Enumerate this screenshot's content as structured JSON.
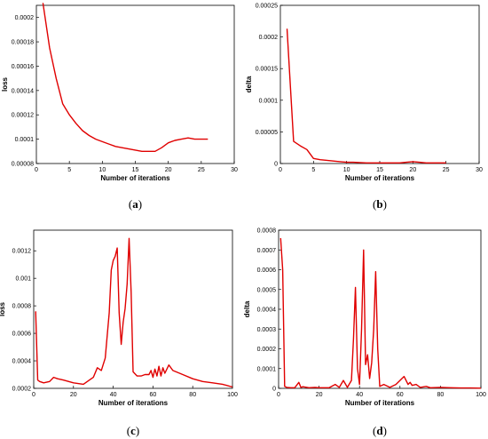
{
  "chart_data": [
    {
      "type": "line",
      "caption_letter": "a",
      "xlabel": "Number of iterations",
      "ylabel": "loss",
      "xlim": [
        0,
        30
      ],
      "ylim": [
        8e-05,
        0.00021
      ],
      "xticks": [
        "0",
        "5",
        "10",
        "15",
        "20",
        "25",
        "30"
      ],
      "yticks": [
        "0.00008",
        "0.0001",
        "0.00012",
        "0.00014",
        "0.00016",
        "0.00018",
        "0.0002"
      ],
      "line_color": "#e00000",
      "x": [
        1,
        2,
        3,
        4,
        5,
        6,
        7,
        8,
        9,
        10,
        11,
        12,
        13,
        14,
        15,
        16,
        17,
        18,
        19,
        20,
        21,
        22,
        23,
        24,
        25,
        26
      ],
      "y": [
        0.000212,
        0.000175,
        0.00015,
        0.000129,
        0.00012,
        0.000113,
        0.000107,
        0.000103,
        0.0001,
        9.8e-05,
        9.6e-05,
        9.4e-05,
        9.3e-05,
        9.2e-05,
        9.1e-05,
        9e-05,
        9e-05,
        9e-05,
        9.3e-05,
        9.7e-05,
        9.9e-05,
        0.0001,
        0.000101,
        0.0001,
        0.0001,
        0.0001
      ]
    },
    {
      "type": "line",
      "caption_letter": "b",
      "xlabel": "Number of iterations",
      "ylabel": "delta",
      "xlim": [
        0,
        30
      ],
      "ylim": [
        0,
        0.00025
      ],
      "xticks": [
        "0",
        "5",
        "10",
        "15",
        "20",
        "25",
        "30"
      ],
      "yticks": [
        "0",
        "0.00005",
        "0.0001",
        "0.00015",
        "0.0002",
        "0.00025"
      ],
      "line_color": "#e00000",
      "x": [
        1,
        2,
        3,
        4,
        5,
        6,
        7,
        8,
        9,
        10,
        11,
        12,
        13,
        14,
        15,
        16,
        17,
        18,
        19,
        20,
        21,
        22,
        23,
        24,
        25
      ],
      "y": [
        0.000213,
        3.5e-05,
        2.8e-05,
        2.2e-05,
        8e-06,
        6e-06,
        5e-06,
        4e-06,
        3e-06,
        2e-06,
        2e-06,
        1.5e-06,
        1e-06,
        1e-06,
        1e-06,
        1e-06,
        1e-06,
        1e-06,
        2e-06,
        3e-06,
        2e-06,
        1e-06,
        1e-06,
        1e-06,
        1e-06
      ]
    },
    {
      "type": "line",
      "caption_letter": "c",
      "xlabel": "Number of iterations",
      "ylabel": "loss",
      "xlim": [
        0,
        100
      ],
      "ylim": [
        0.0002,
        0.00135
      ],
      "xticks": [
        "0",
        "20",
        "40",
        "60",
        "80",
        "100"
      ],
      "yticks": [
        "0.0002",
        "0.0004",
        "0.0006",
        "0.0008",
        "0.001",
        "0.0012"
      ],
      "line_color": "#e00000",
      "x": [
        1,
        2,
        3,
        5,
        8,
        10,
        12,
        15,
        20,
        25,
        28,
        30,
        32,
        34,
        36,
        38,
        39,
        40,
        41,
        42,
        43,
        44,
        45,
        46,
        47,
        48,
        49,
        50,
        52,
        54,
        56,
        58,
        59,
        60,
        61,
        62,
        63,
        64,
        65,
        66,
        68,
        70,
        75,
        80,
        85,
        90,
        95,
        100
      ],
      "y": [
        0.00076,
        0.00026,
        0.00025,
        0.00024,
        0.00025,
        0.00028,
        0.00027,
        0.00026,
        0.00024,
        0.00023,
        0.00026,
        0.00028,
        0.00035,
        0.00033,
        0.00042,
        0.00075,
        0.00106,
        0.00113,
        0.00116,
        0.00122,
        0.00075,
        0.00052,
        0.00068,
        0.00078,
        0.00096,
        0.00129,
        0.0009,
        0.00032,
        0.00029,
        0.00029,
        0.0003,
        0.0003,
        0.00033,
        0.00028,
        0.00034,
        0.00029,
        0.00036,
        0.00029,
        0.00035,
        0.00031,
        0.00037,
        0.00033,
        0.0003,
        0.00027,
        0.00025,
        0.00024,
        0.00023,
        0.00021
      ]
    },
    {
      "type": "line",
      "caption_letter": "d",
      "xlabel": "Number of iterations",
      "ylabel": "delta",
      "xlim": [
        0,
        100
      ],
      "ylim": [
        0,
        0.0008
      ],
      "xticks": [
        "0",
        "20",
        "40",
        "60",
        "80",
        "100"
      ],
      "yticks": [
        "0",
        "0.0001",
        "0.0002",
        "0.0003",
        "0.0004",
        "0.0005",
        "0.0006",
        "0.0007",
        "0.0008"
      ],
      "line_color": "#e00000",
      "x": [
        1,
        2,
        3,
        4,
        6,
        8,
        10,
        11,
        12,
        15,
        18,
        20,
        25,
        28,
        30,
        32,
        34,
        36,
        37,
        38,
        39,
        40,
        41,
        42,
        43,
        44,
        45,
        46,
        47,
        48,
        49,
        50,
        52,
        55,
        58,
        60,
        62,
        64,
        65,
        66,
        68,
        70,
        73,
        75,
        80,
        85,
        90,
        95,
        100
      ],
      "y": [
        0.00076,
        0.0006,
        1e-05,
        5e-06,
        3e-06,
        3e-06,
        3e-05,
        5e-06,
        8e-06,
        3e-06,
        5e-06,
        3e-06,
        3e-06,
        2e-05,
        5e-06,
        4e-05,
        5e-06,
        4e-05,
        0.00025,
        0.00051,
        0.0001,
        2e-05,
        0.0003,
        0.0007,
        0.00012,
        0.00017,
        5e-05,
        0.00013,
        0.0003,
        0.00059,
        0.0002,
        1e-05,
        2e-05,
        5e-06,
        2e-05,
        4e-05,
        6e-05,
        2e-05,
        3e-05,
        1.5e-05,
        2e-05,
        5e-06,
        1e-05,
        3e-06,
        5e-06,
        3e-06,
        2e-06,
        2e-06,
        1e-06
      ]
    }
  ]
}
